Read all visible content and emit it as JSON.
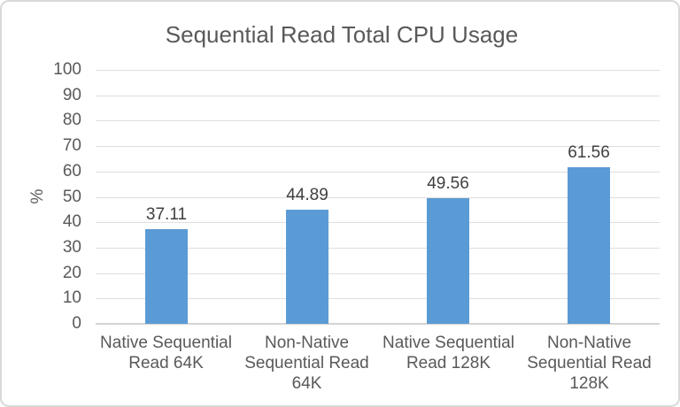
{
  "chart_data": {
    "type": "bar",
    "title": "Sequential Read Total CPU Usage",
    "xlabel": "",
    "ylabel": "%",
    "categories": [
      "Native Sequential Read 64K",
      "Non-Native Sequential Read 64K",
      "Native Sequential Read 128K",
      "Non-Native Sequential Read 128K"
    ],
    "category_lines": [
      [
        "Native Sequential",
        "Read 64K"
      ],
      [
        "Non-Native",
        "Sequential Read",
        "64K"
      ],
      [
        "Native Sequential",
        "Read 128K"
      ],
      [
        "Non-Native",
        "Sequential Read",
        "128K"
      ]
    ],
    "values": [
      37.11,
      44.89,
      49.56,
      61.56
    ],
    "value_labels": [
      "37.11",
      "44.89",
      "49.56",
      "61.56"
    ],
    "ylim": [
      0,
      100
    ],
    "yticks": [
      0,
      10,
      20,
      30,
      40,
      50,
      60,
      70,
      80,
      90,
      100
    ],
    "grid": true,
    "legend_position": "none",
    "colors": {
      "bar": "#5B9BD5",
      "title_text": "#595959",
      "axis_text": "#595959",
      "data_label_text": "#404040",
      "gridline": "#DEDEDE",
      "axis_line": "#D4D4D4",
      "frame_border": "#D9D9D9",
      "background": "#FFFFFF"
    }
  }
}
